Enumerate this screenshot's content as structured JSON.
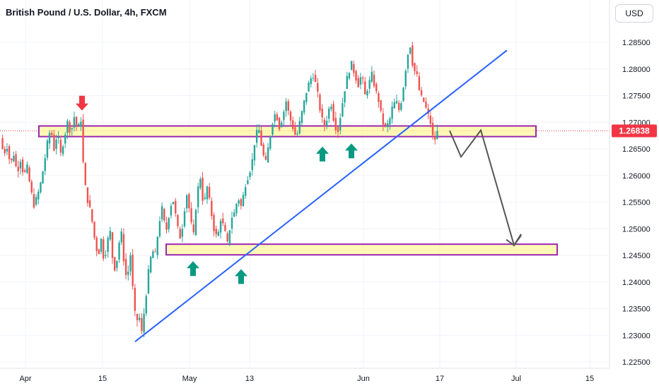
{
  "header": {
    "title": "British Pound / U.S. Dollar, 4h, FXCM",
    "currency_button": "USD"
  },
  "colors": {
    "up": "#26a69a",
    "down": "#ef5350",
    "trendline": "#2962ff",
    "zone_fill": "#fff59d",
    "zone_border": "#9c27b0",
    "projection": "#555555",
    "price_badge": "#f23645",
    "arrow_up": "#089981",
    "arrow_down": "#f23645"
  },
  "chart_data": {
    "type": "candlestick",
    "title": "British Pound / U.S. Dollar, 4h, FXCM",
    "ylim": [
      1.2245,
      1.2905
    ],
    "y_ticks": [
      "1.28500",
      "1.28000",
      "1.27500",
      "1.27000",
      "1.26500",
      "1.26000",
      "1.25500",
      "1.25000",
      "1.24500",
      "1.24000",
      "1.23500",
      "1.23000",
      "1.22500"
    ],
    "x_ticks": [
      "Apr",
      "15",
      "May",
      "13",
      "Jun",
      "17",
      "Jul",
      "15"
    ],
    "current_price": "1.26838",
    "price_path": [
      [
        1.267,
        1.264,
        1.2655,
        1.262,
        1.264,
        1.2605,
        1.263,
        1.26,
        1.2615,
        1.2575,
        1.2545,
        1.256,
        1.2585,
        1.262,
        1.266,
        1.269,
        1.265,
        1.268,
        1.264,
        1.267,
        1.27,
        1.268,
        1.271,
        1.2685,
        1.2705
      ],
      [
        1.2705,
        1.26,
        1.256,
        1.254,
        1.251,
        1.247,
        1.245,
        1.248,
        1.244,
        1.247,
        1.25,
        1.244,
        1.242,
        1.247,
        1.249,
        1.243,
        1.24,
        1.246,
        1.238,
        1.232,
        1.234,
        1.2305
      ],
      [
        1.2305,
        1.236,
        1.242,
        1.246,
        1.245,
        1.251,
        1.254,
        1.249,
        1.253,
        1.256,
        1.252,
        1.248,
        1.251,
        1.257,
        1.253,
        1.248,
        1.256,
        1.26,
        1.254,
        1.258,
        1.254,
        1.25,
        1.248,
        1.252,
        1.25,
        1.247,
        1.252,
        1.253,
        1.256,
        1.254,
        1.258,
        1.26,
        1.262,
        1.267,
        1.269,
        1.265,
        1.262,
        1.266,
        1.27,
        1.272,
        1.269,
        1.271,
        1.274,
        1.271,
        1.269,
        1.267,
        1.27,
        1.273,
        1.276,
        1.278,
        1.279,
        1.276,
        1.272,
        1.269,
        1.271,
        1.274,
        1.27,
        1.268,
        1.272,
        1.276,
        1.279,
        1.281,
        1.279,
        1.277,
        1.279,
        1.275,
        1.277,
        1.279,
        1.276,
        1.274,
        1.27,
        1.269,
        1.27,
        1.273,
        1.274,
        1.272,
        1.276,
        1.281,
        1.285,
        1.28,
        1.279,
        1.275,
        1.274,
        1.272,
        1.27,
        1.266,
        1.2684
      ]
    ],
    "support_zones": [
      {
        "upper": 1.2693,
        "lower": 1.2673,
        "from": "Apr",
        "to": "Jul"
      },
      {
        "upper": 1.2471,
        "lower": 1.2451,
        "from": "May",
        "to": "15"
      }
    ],
    "trendline": {
      "from": [
        1.2288
      ],
      "to": [
        1.2835
      ]
    },
    "projection_path": [
      1.2684,
      1.2635,
      1.2685,
      1.2469,
      1.249
    ],
    "markers": [
      {
        "type": "down",
        "price": 1.271
      },
      {
        "type": "up",
        "price": 1.267
      },
      {
        "type": "up",
        "price": 1.2676
      },
      {
        "type": "up",
        "price": 1.2455
      },
      {
        "type": "up",
        "price": 1.244
      }
    ]
  }
}
